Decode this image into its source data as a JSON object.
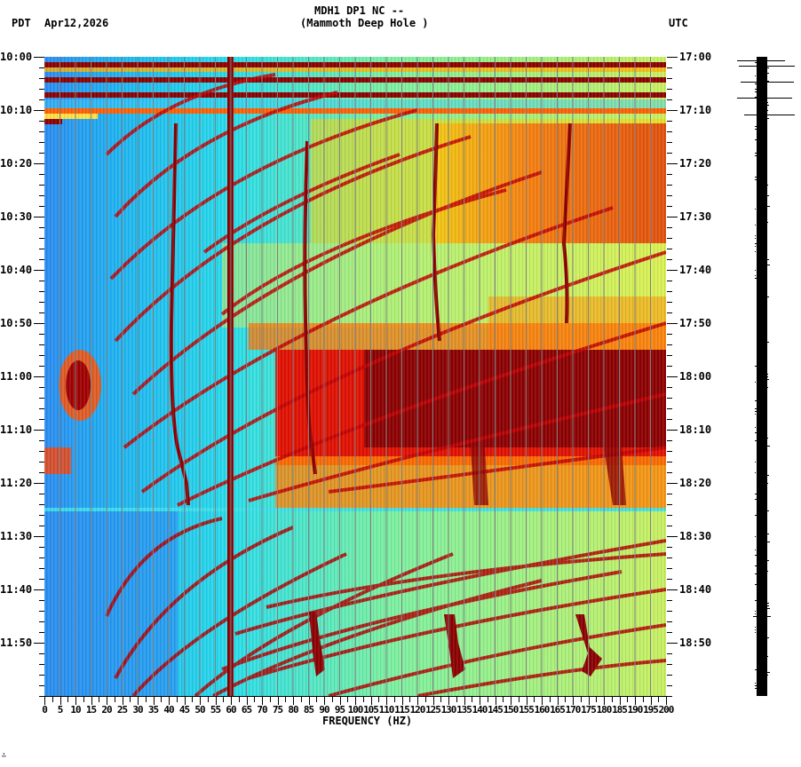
{
  "header": {
    "title_line1": "MDH1 DP1 NC --",
    "title_line2": "(Mammoth Deep Hole )",
    "left_timezone": "PDT",
    "date": "Apr12,2026",
    "right_timezone": "UTC"
  },
  "footer": {
    "mark": "∴"
  },
  "colors": {
    "low": "#1e64ff",
    "mid_low": "#00e5ff",
    "mid": "#b4ff5a",
    "mid_high": "#ffff00",
    "high": "#ff8000",
    "very_high": "#ff1a00",
    "max": "#8b0000",
    "gridline": "#808080"
  },
  "chart_data": {
    "type": "heatmap",
    "title": "MDH1 DP1 NC -- (Mammoth Deep Hole )",
    "xlabel": "FREQUENCY (HZ)",
    "ylabel_left": "PDT",
    "ylabel_right": "UTC",
    "date": "Apr12,2026",
    "xlim": [
      0,
      200
    ],
    "x_ticks": [
      "0",
      "5",
      "10",
      "15",
      "20",
      "25",
      "30",
      "35",
      "40",
      "45",
      "50",
      "55",
      "60",
      "65",
      "70",
      "75",
      "80",
      "85",
      "90",
      "95",
      "100",
      "105",
      "110",
      "115",
      "120",
      "125",
      "130",
      "135",
      "140",
      "145",
      "150",
      "155",
      "160",
      "165",
      "170",
      "175",
      "180",
      "185",
      "190",
      "195",
      "200"
    ],
    "y_ticks_left": [
      "10:00",
      "10:10",
      "10:20",
      "10:30",
      "10:40",
      "10:50",
      "11:00",
      "11:10",
      "11:20",
      "11:30",
      "11:40",
      "11:50"
    ],
    "y_ticks_right": [
      "17:00",
      "17:10",
      "17:20",
      "17:30",
      "17:40",
      "17:50",
      "18:00",
      "18:10",
      "18:20",
      "18:30",
      "18:40",
      "18:50"
    ],
    "time_range_pdt": [
      "10:00",
      "12:00"
    ],
    "gridlines_vertical_every_hz": 5,
    "features": [
      {
        "name": "60 Hz power line",
        "freq_hz": 60,
        "time": "10:00-12:00",
        "intensity": "max"
      },
      {
        "name": "Broadband strong noise block",
        "freq_hz": [
          85,
          200
        ],
        "time": "10:55-11:15",
        "intensity": "max"
      },
      {
        "name": "Elevated band",
        "freq_hz": [
          125,
          200
        ],
        "time": "10:12-10:35",
        "intensity": "high"
      },
      {
        "name": "Gliding harmonics (curved)",
        "freq_hz": [
          20,
          200
        ],
        "time": "10:10-12:00",
        "intensity": "high"
      },
      {
        "name": "Low-frequency burst",
        "freq_hz": [
          5,
          15
        ],
        "time": "10:56-11:08",
        "intensity": "high"
      },
      {
        "name": "Wandering tone ~42 Hz",
        "freq_hz": [
          40,
          46
        ],
        "time": "10:12-11:25",
        "intensity": "max"
      },
      {
        "name": "Wandering tone ~85 Hz",
        "freq_hz": [
          84,
          88
        ],
        "time": "10:15-11:25",
        "intensity": "max"
      },
      {
        "name": "Wandering tone ~125 Hz",
        "freq_hz": [
          123,
          128
        ],
        "time": "10:10-10:50",
        "intensity": "max"
      },
      {
        "name": "Wandering tone ~168 Hz",
        "freq_hz": [
          165,
          172
        ],
        "time": "10:10-11:25",
        "intensity": "max"
      },
      {
        "name": "Late transients",
        "freq_hz": [
          85,
          90,
          130,
          135,
          170,
          175
        ],
        "time": "11:45-11:55",
        "intensity": "max"
      },
      {
        "name": "Early horizontal bursts",
        "freq_hz": [
          0,
          200
        ],
        "time": "10:00-10:12",
        "intensity": "max"
      }
    ],
    "legend": []
  }
}
